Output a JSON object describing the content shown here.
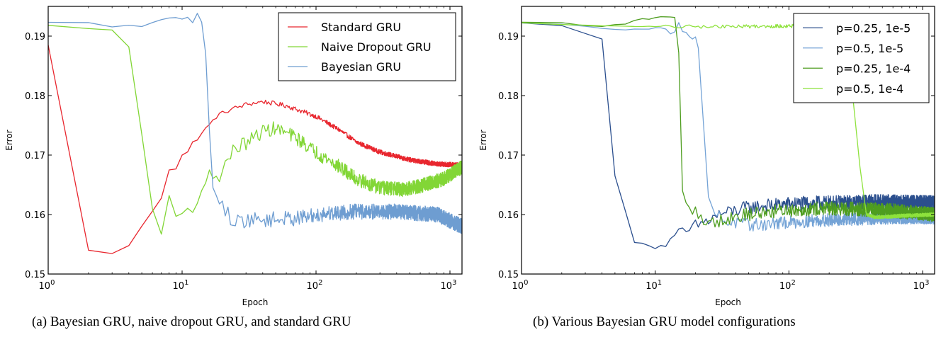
{
  "chart_data": [
    {
      "id": "a",
      "type": "line",
      "title": "",
      "caption": "(a) Bayesian GRU, naive dropout GRU, and standard GRU",
      "xlabel": "Epoch",
      "ylabel": "Error",
      "xscale": "log",
      "xlim": [
        1,
        1230
      ],
      "ylim": [
        0.15,
        0.195
      ],
      "xticks": [
        {
          "value": 1,
          "base": "10",
          "exp": "0"
        },
        {
          "value": 10,
          "base": "10",
          "exp": "1"
        },
        {
          "value": 100,
          "base": "10",
          "exp": "2"
        },
        {
          "value": 1000,
          "base": "10",
          "exp": "3"
        }
      ],
      "yticks": [
        {
          "value": 0.15,
          "label": "0.15"
        },
        {
          "value": 0.16,
          "label": "0.16"
        },
        {
          "value": 0.17,
          "label": "0.17"
        },
        {
          "value": 0.18,
          "label": "0.18"
        },
        {
          "value": 0.19,
          "label": "0.19"
        }
      ],
      "grid": false,
      "legend_position": "top-right",
      "series": [
        {
          "name": "Standard GRU",
          "color": "#e8262e",
          "noise": 0.0004,
          "points": [
            [
              1,
              0.1885
            ],
            [
              2,
              0.154
            ],
            [
              3,
              0.1534
            ],
            [
              4,
              0.1548
            ],
            [
              5,
              0.158
            ],
            [
              7,
              0.1628
            ],
            [
              8,
              0.1675
            ],
            [
              9,
              0.1677
            ],
            [
              10,
              0.17
            ],
            [
              11,
              0.1705
            ],
            [
              12,
              0.172
            ],
            [
              14,
              0.1737
            ],
            [
              16,
              0.175
            ],
            [
              18,
              0.1765
            ],
            [
              22,
              0.1775
            ],
            [
              30,
              0.1785
            ],
            [
              40,
              0.179
            ],
            [
              60,
              0.1783
            ],
            [
              100,
              0.1765
            ],
            [
              150,
              0.1742
            ],
            [
              200,
              0.1722
            ],
            [
              300,
              0.1705
            ],
            [
              500,
              0.1692
            ],
            [
              800,
              0.1685
            ],
            [
              1230,
              0.1683
            ]
          ]
        },
        {
          "name": "Naive Dropout GRU",
          "color": "#82d636",
          "noise": 0.0012,
          "points": [
            [
              1,
              0.1917
            ],
            [
              2,
              0.1915
            ],
            [
              3,
              0.1908
            ],
            [
              4,
              0.1882
            ],
            [
              5,
              0.1735
            ],
            [
              6,
              0.161
            ],
            [
              7,
              0.1567
            ],
            [
              8,
              0.1632
            ],
            [
              9,
              0.1597
            ],
            [
              10,
              0.1603
            ],
            [
              12,
              0.1615
            ],
            [
              14,
              0.163
            ],
            [
              16,
              0.1675
            ],
            [
              17,
              0.1662
            ],
            [
              19,
              0.1665
            ],
            [
              22,
              0.1693
            ],
            [
              25,
              0.1712
            ],
            [
              30,
              0.172
            ],
            [
              40,
              0.174
            ],
            [
              50,
              0.1745
            ],
            [
              70,
              0.173
            ],
            [
              100,
              0.1705
            ],
            [
              150,
              0.168
            ],
            [
              200,
              0.166
            ],
            [
              300,
              0.1645
            ],
            [
              450,
              0.1642
            ],
            [
              600,
              0.1648
            ],
            [
              900,
              0.166
            ],
            [
              1230,
              0.168
            ]
          ]
        },
        {
          "name": "Bayesian GRU",
          "color": "#6e9dd1",
          "noise": 0.0013,
          "points": [
            [
              1,
              0.1922
            ],
            [
              2,
              0.1921
            ],
            [
              3,
              0.1917
            ],
            [
              5,
              0.1918
            ],
            [
              6,
              0.1922
            ],
            [
              8,
              0.1928
            ],
            [
              10,
              0.1931
            ],
            [
              12,
              0.1929
            ],
            [
              13,
              0.1935
            ],
            [
              14,
              0.1925
            ],
            [
              15,
              0.187
            ],
            [
              16,
              0.174
            ],
            [
              17,
              0.1645
            ],
            [
              18,
              0.1632
            ],
            [
              20,
              0.1612
            ],
            [
              24,
              0.159
            ],
            [
              30,
              0.159
            ],
            [
              50,
              0.1592
            ],
            [
              80,
              0.1595
            ],
            [
              120,
              0.1602
            ],
            [
              200,
              0.1605
            ],
            [
              400,
              0.1605
            ],
            [
              800,
              0.16
            ],
            [
              1230,
              0.158
            ]
          ]
        }
      ]
    },
    {
      "id": "b",
      "type": "line",
      "title": "",
      "caption": "(b) Various Bayesian GRU model configurations",
      "xlabel": "Epoch",
      "ylabel": "Error",
      "xscale": "log",
      "xlim": [
        1,
        1230
      ],
      "ylim": [
        0.15,
        0.195
      ],
      "xticks": [
        {
          "value": 1,
          "base": "10",
          "exp": "0"
        },
        {
          "value": 10,
          "base": "10",
          "exp": "1"
        },
        {
          "value": 100,
          "base": "10",
          "exp": "2"
        },
        {
          "value": 1000,
          "base": "10",
          "exp": "3"
        }
      ],
      "yticks": [
        {
          "value": 0.15,
          "label": "0.15"
        },
        {
          "value": 0.16,
          "label": "0.16"
        },
        {
          "value": 0.17,
          "label": "0.17"
        },
        {
          "value": 0.18,
          "label": "0.18"
        },
        {
          "value": 0.19,
          "label": "0.19"
        }
      ],
      "grid": false,
      "legend_position": "top-right",
      "series": [
        {
          "name": "p=0.25, 1e-5",
          "color": "#2b4f8e",
          "noise": 0.0012,
          "points": [
            [
              1,
              0.1921
            ],
            [
              2,
              0.192
            ],
            [
              3,
              0.1906
            ],
            [
              4,
              0.1893
            ],
            [
              5,
              0.1665
            ],
            [
              6,
              0.1605
            ],
            [
              7,
              0.1553
            ],
            [
              8,
              0.1554
            ],
            [
              9,
              0.1547
            ],
            [
              10,
              0.1545
            ],
            [
              11,
              0.1547
            ],
            [
              12,
              0.1553
            ],
            [
              13,
              0.1552
            ],
            [
              15,
              0.1566
            ],
            [
              18,
              0.1572
            ],
            [
              20,
              0.158
            ],
            [
              25,
              0.159
            ],
            [
              30,
              0.16
            ],
            [
              50,
              0.1612
            ],
            [
              100,
              0.1618
            ],
            [
              200,
              0.162
            ],
            [
              500,
              0.1622
            ],
            [
              1230,
              0.162
            ]
          ]
        },
        {
          "name": "p=0.5, 1e-5",
          "color": "#74a3d6",
          "noise": 0.0011,
          "points": [
            [
              1,
              0.1921
            ],
            [
              3,
              0.1917
            ],
            [
              5,
              0.1913
            ],
            [
              8,
              0.1912
            ],
            [
              12,
              0.1913
            ],
            [
              15,
              0.1912
            ],
            [
              18,
              0.191
            ],
            [
              20,
              0.19
            ],
            [
              21,
              0.188
            ],
            [
              23,
              0.175
            ],
            [
              25,
              0.163
            ],
            [
              28,
              0.16
            ],
            [
              35,
              0.1588
            ],
            [
              50,
              0.1582
            ],
            [
              80,
              0.1585
            ],
            [
              150,
              0.159
            ],
            [
              300,
              0.1592
            ],
            [
              600,
              0.1595
            ],
            [
              1230,
              0.1595
            ]
          ]
        },
        {
          "name": "p=0.25, 1e-4",
          "color": "#4e9d1f",
          "noise": 0.0012,
          "points": [
            [
              1,
              0.1922
            ],
            [
              2,
              0.1922
            ],
            [
              3,
              0.1917
            ],
            [
              5,
              0.1918
            ],
            [
              7,
              0.1925
            ],
            [
              9,
              0.193
            ],
            [
              11,
              0.1931
            ],
            [
              12,
              0.1928
            ],
            [
              13,
              0.1935
            ],
            [
              14,
              0.1925
            ],
            [
              15,
              0.1872
            ],
            [
              16,
              0.164
            ],
            [
              17,
              0.162
            ],
            [
              19,
              0.1605
            ],
            [
              22,
              0.1598
            ],
            [
              26,
              0.1585
            ],
            [
              35,
              0.1595
            ],
            [
              60,
              0.1603
            ],
            [
              100,
              0.1608
            ],
            [
              200,
              0.161
            ],
            [
              500,
              0.1608
            ],
            [
              1230,
              0.16
            ]
          ]
        },
        {
          "name": "p=0.5, 1e-4",
          "color": "#8ee23c",
          "noise": 0.0003,
          "points": [
            [
              1,
              0.1922
            ],
            [
              3,
              0.1918
            ],
            [
              10,
              0.1916
            ],
            [
              30,
              0.1916
            ],
            [
              100,
              0.1917
            ],
            [
              200,
              0.1917
            ],
            [
              270,
              0.1917
            ],
            [
              300,
              0.18
            ],
            [
              340,
              0.168
            ],
            [
              380,
              0.16
            ],
            [
              450,
              0.1595
            ],
            [
              700,
              0.1598
            ],
            [
              1230,
              0.16
            ]
          ]
        }
      ]
    }
  ]
}
